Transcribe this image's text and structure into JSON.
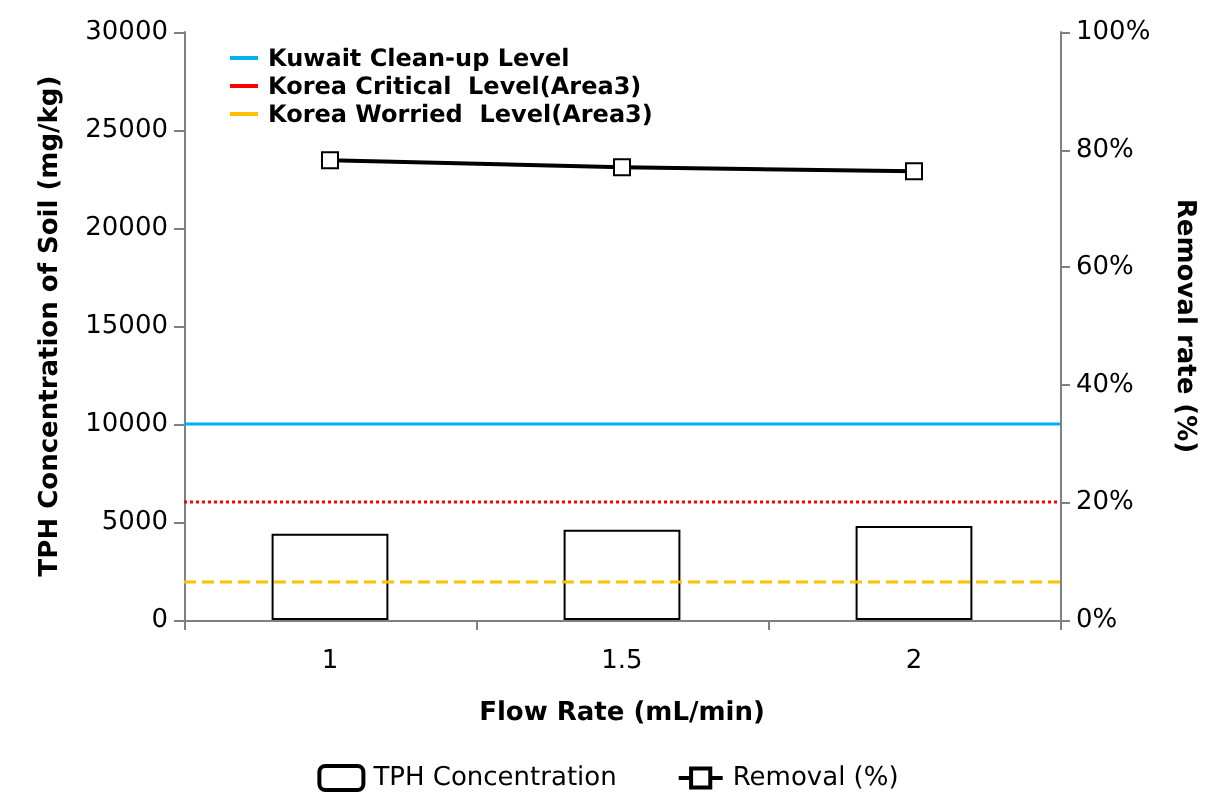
{
  "chart_data": {
    "type": "bar",
    "xlabel": "Flow Rate (mL/min)",
    "ylabel": "TPH Concentration of Soil (mg/kg)",
    "y2label": "Removal rate (%)",
    "categories": [
      "1",
      "1.5",
      "2"
    ],
    "series": [
      {
        "name": "TPH Concentration",
        "color": "#ffffff",
        "values": [
          4400,
          4600,
          4800
        ]
      },
      {
        "name": "Removal (%)",
        "type": "line",
        "axis": "y2",
        "color": "#000000",
        "marker": "square",
        "values": [
          78.2,
          77.0,
          76.3
        ]
      }
    ],
    "ylim": [
      0,
      30000
    ],
    "yticks": [
      0,
      5000,
      10000,
      15000,
      20000,
      25000,
      30000
    ],
    "y2lim": [
      0,
      100
    ],
    "y2ticks": [
      {
        "value": 0,
        "label": "0%"
      },
      {
        "value": 20,
        "label": "20%"
      },
      {
        "value": 40,
        "label": "40%"
      },
      {
        "value": 60,
        "label": "60%"
      },
      {
        "value": 80,
        "label": "80%"
      },
      {
        "value": 100,
        "label": "100%"
      }
    ],
    "ref_lines": [
      {
        "axis": "y",
        "value": 10000,
        "label": "Kuwait Clean-up Level",
        "color": "#00b0f0",
        "line_style": "solid"
      },
      {
        "axis": "y",
        "value": 6000,
        "label": "Korea Critical  Level(Area3)",
        "color": "#ff0000",
        "line_style": "dotted"
      },
      {
        "axis": "y",
        "value": 2000,
        "label": "Korea Worried  Level(Area3)",
        "color": "#ffc000",
        "line_style": "dashed"
      }
    ],
    "grid": false,
    "legend": "bottom"
  }
}
